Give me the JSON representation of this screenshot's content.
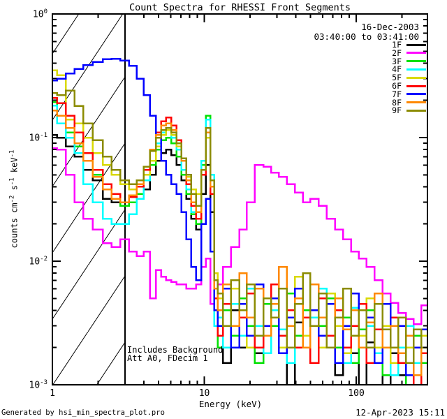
{
  "title": "Count Spectra for RHESSI Front Segments",
  "header": {
    "date": "16-Dec-2003",
    "time_range": "03:40:00 to 03:41:00"
  },
  "annotation": {
    "line1": "Includes Background",
    "line2": "Att A0, FDecim 1"
  },
  "footer": {
    "generated_by": "Generated by hsi_min_spectra_plot.pro",
    "datetime": "12-Apr-2023 15:11"
  },
  "legend": {
    "entries": [
      {
        "label": "1F",
        "color": "#000000"
      },
      {
        "label": "2F",
        "color": "#ff00ff"
      },
      {
        "label": "3F",
        "color": "#00e000"
      },
      {
        "label": "4F",
        "color": "#00ffff"
      },
      {
        "label": "5F",
        "color": "#d9d900"
      },
      {
        "label": "6F",
        "color": "#ff0000"
      },
      {
        "label": "7F",
        "color": "#0000ff"
      },
      {
        "label": "8F",
        "color": "#ff8800"
      },
      {
        "label": "9F",
        "color": "#8b8b00"
      }
    ]
  },
  "chart_data": {
    "type": "line",
    "title": "Count Spectra for RHESSI Front Segments",
    "xlabel": "Energy (keV)",
    "ylabel_parts": [
      {
        "t": "counts cm"
      },
      {
        "t": "-2",
        "sup": true
      },
      {
        "t": " s"
      },
      {
        "t": "-1",
        "sup": true
      },
      {
        "t": " keV"
      },
      {
        "t": "-1",
        "sup": true
      }
    ],
    "xscale": "log",
    "yscale": "log",
    "xlim": [
      1,
      294
    ],
    "ylim": [
      0.001,
      1
    ],
    "grid": false,
    "legend_position": "top-right-inside",
    "x_major": [
      1,
      10,
      100
    ],
    "x_tick_labels": [
      "1",
      "10",
      "100"
    ],
    "x_minor": [
      2,
      3,
      4,
      5,
      6,
      7,
      8,
      9,
      20,
      30,
      40,
      50,
      60,
      70,
      80,
      90,
      200
    ],
    "y_major": [
      1,
      0.1,
      0.01,
      0.001
    ],
    "y_tick_labels": [
      {
        "base": "10",
        "exp": "0"
      },
      {
        "base": "10",
        "exp": "-1"
      },
      {
        "base": "10",
        "exp": "-2"
      },
      {
        "base": "10",
        "exp": "-3"
      }
    ],
    "y_minor": [
      0.9,
      0.8,
      0.7,
      0.6,
      0.5,
      0.4,
      0.3,
      0.2,
      0.09,
      0.08,
      0.07,
      0.06,
      0.05,
      0.04,
      0.03,
      0.02,
      0.009,
      0.008,
      0.007,
      0.006,
      0.005,
      0.004,
      0.003,
      0.002
    ],
    "hatch_region": {
      "xmin": 1,
      "xmax": 3
    },
    "energies": [
      1.0,
      1.15,
      1.3,
      1.5,
      1.7,
      2.0,
      2.3,
      2.6,
      3.0,
      3.4,
      3.8,
      4.2,
      4.6,
      5.0,
      5.4,
      5.8,
      6.3,
      6.8,
      7.3,
      7.9,
      8.5,
      9.2,
      9.9,
      10.6,
      11.3,
      12.0,
      12.5,
      14,
      16,
      18,
      20,
      23,
      26,
      29,
      33,
      37,
      42,
      47,
      53,
      60,
      68,
      77,
      87,
      98,
      110,
      124,
      140,
      158,
      178,
      200,
      225,
      253,
      285
    ],
    "series": [
      {
        "name": "1F",
        "color": "#000000",
        "values": [
          0.105,
          0.1,
          0.085,
          0.07,
          0.055,
          0.045,
          0.032,
          0.03,
          0.028,
          0.03,
          0.032,
          0.038,
          0.05,
          0.065,
          0.075,
          0.08,
          0.072,
          0.06,
          0.045,
          0.032,
          0.022,
          0.018,
          0.035,
          0.06,
          0.025,
          0.006,
          0.003,
          0.0015,
          0.004,
          0.002,
          0.0035,
          0.0018,
          0.003,
          0.0045,
          0.002,
          0.001,
          0.0032,
          0.0025,
          0.0015,
          0.003,
          0.002,
          0.0012,
          0.0028,
          0.0018,
          0.001,
          0.0022,
          0.0015,
          0.001,
          0.0018,
          0.0012,
          0.001,
          0.0015,
          0.001
        ]
      },
      {
        "name": "2F",
        "color": "#ff00ff",
        "values": [
          0.082,
          0.08,
          0.05,
          0.03,
          0.022,
          0.018,
          0.014,
          0.013,
          0.015,
          0.012,
          0.011,
          0.012,
          0.005,
          0.0085,
          0.0075,
          0.007,
          0.0068,
          0.0065,
          0.0065,
          0.006,
          0.006,
          0.0065,
          0.009,
          0.0105,
          0.0045,
          0.005,
          0.0065,
          0.009,
          0.013,
          0.018,
          0.03,
          0.06,
          0.058,
          0.052,
          0.048,
          0.042,
          0.036,
          0.03,
          0.032,
          0.028,
          0.022,
          0.018,
          0.015,
          0.012,
          0.0105,
          0.009,
          0.007,
          0.0055,
          0.0046,
          0.0038,
          0.0034,
          0.0031,
          0.0044
        ]
      },
      {
        "name": "3F",
        "color": "#00e000",
        "values": [
          0.194,
          0.15,
          0.11,
          0.085,
          0.065,
          0.05,
          0.038,
          0.032,
          0.028,
          0.03,
          0.035,
          0.045,
          0.06,
          0.08,
          0.095,
          0.1,
          0.09,
          0.07,
          0.05,
          0.035,
          0.024,
          0.02,
          0.06,
          0.15,
          0.045,
          0.004,
          0.002,
          0.004,
          0.0025,
          0.005,
          0.003,
          0.0015,
          0.0045,
          0.003,
          0.002,
          0.0055,
          0.0025,
          0.004,
          0.0015,
          0.003,
          0.005,
          0.002,
          0.0035,
          0.0015,
          0.0028,
          0.004,
          0.002,
          0.0012,
          0.003,
          0.0018,
          0.001,
          0.0025,
          0.0015
        ]
      },
      {
        "name": "4F",
        "color": "#00ffff",
        "values": [
          0.182,
          0.13,
          0.1,
          0.075,
          0.042,
          0.03,
          0.022,
          0.02,
          0.02,
          0.024,
          0.032,
          0.045,
          0.065,
          0.09,
          0.11,
          0.115,
          0.1,
          0.08,
          0.055,
          0.038,
          0.025,
          0.022,
          0.065,
          0.14,
          0.05,
          0.003,
          0.0035,
          0.002,
          0.0045,
          0.0025,
          0.006,
          0.003,
          0.0018,
          0.004,
          0.0028,
          0.0015,
          0.005,
          0.002,
          0.0035,
          0.006,
          0.002,
          0.003,
          0.0015,
          0.0042,
          0.002,
          0.003,
          0.0018,
          0.0045,
          0.0012,
          0.002,
          0.003,
          0.0015,
          0.002
        ]
      },
      {
        "name": "5F",
        "color": "#d9d900",
        "values": [
          0.35,
          0.32,
          0.14,
          0.13,
          0.1,
          0.075,
          0.06,
          0.05,
          0.042,
          0.038,
          0.04,
          0.05,
          0.065,
          0.085,
          0.105,
          0.115,
          0.105,
          0.085,
          0.065,
          0.048,
          0.038,
          0.035,
          0.055,
          0.1,
          0.04,
          0.008,
          0.005,
          0.003,
          0.006,
          0.0035,
          0.002,
          0.0065,
          0.003,
          0.005,
          0.002,
          0.004,
          0.0075,
          0.0025,
          0.004,
          0.002,
          0.0055,
          0.003,
          0.0018,
          0.004,
          0.0025,
          0.005,
          0.002,
          0.003,
          0.0015,
          0.0035,
          0.002,
          0.001,
          0.0025
        ]
      },
      {
        "name": "6F",
        "color": "#ff0000",
        "values": [
          0.21,
          0.19,
          0.15,
          0.11,
          0.075,
          0.055,
          0.042,
          0.035,
          0.03,
          0.033,
          0.04,
          0.055,
          0.08,
          0.11,
          0.135,
          0.145,
          0.125,
          0.095,
          0.065,
          0.042,
          0.028,
          0.022,
          0.05,
          0.12,
          0.035,
          0.005,
          0.0025,
          0.0045,
          0.002,
          0.0035,
          0.0055,
          0.002,
          0.003,
          0.0065,
          0.0025,
          0.004,
          0.002,
          0.0035,
          0.0015,
          0.005,
          0.0025,
          0.004,
          0.002,
          0.003,
          0.0045,
          0.0015,
          0.0028,
          0.002,
          0.0035,
          0.0015,
          0.0025,
          0.001,
          0.0018
        ]
      },
      {
        "name": "7F",
        "color": "#0000ff",
        "values": [
          0.29,
          0.3,
          0.33,
          0.36,
          0.385,
          0.41,
          0.43,
          0.435,
          0.42,
          0.38,
          0.3,
          0.22,
          0.15,
          0.1,
          0.065,
          0.05,
          0.042,
          0.035,
          0.025,
          0.015,
          0.009,
          0.007,
          0.02,
          0.032,
          0.012,
          0.004,
          0.003,
          0.006,
          0.002,
          0.0045,
          0.0025,
          0.0065,
          0.003,
          0.005,
          0.0018,
          0.0035,
          0.006,
          0.002,
          0.004,
          0.0025,
          0.0045,
          0.0015,
          0.003,
          0.0055,
          0.002,
          0.0035,
          0.0015,
          0.0045,
          0.002,
          0.003,
          0.0012,
          0.002,
          0.0028
        ]
      },
      {
        "name": "8F",
        "color": "#ff8800",
        "values": [
          0.166,
          0.15,
          0.12,
          0.09,
          0.065,
          0.048,
          0.038,
          0.032,
          0.03,
          0.034,
          0.042,
          0.058,
          0.08,
          0.105,
          0.125,
          0.13,
          0.115,
          0.09,
          0.065,
          0.045,
          0.03,
          0.025,
          0.055,
          0.11,
          0.04,
          0.006,
          0.004,
          0.0065,
          0.003,
          0.008,
          0.0035,
          0.006,
          0.0025,
          0.0045,
          0.009,
          0.003,
          0.005,
          0.002,
          0.0065,
          0.0035,
          0.002,
          0.005,
          0.0028,
          0.004,
          0.002,
          0.0032,
          0.0055,
          0.002,
          0.003,
          0.0018,
          0.0025,
          0.0012,
          0.002
        ]
      },
      {
        "name": "9F",
        "color": "#8b8b00",
        "values": [
          0.23,
          0.22,
          0.24,
          0.18,
          0.13,
          0.095,
          0.07,
          0.055,
          0.045,
          0.042,
          0.045,
          0.058,
          0.078,
          0.1,
          0.115,
          0.12,
          0.11,
          0.09,
          0.068,
          0.05,
          0.035,
          0.028,
          0.055,
          0.12,
          0.045,
          0.007,
          0.0055,
          0.003,
          0.007,
          0.004,
          0.0065,
          0.0025,
          0.005,
          0.0035,
          0.006,
          0.002,
          0.0045,
          0.008,
          0.003,
          0.0055,
          0.002,
          0.0035,
          0.006,
          0.0025,
          0.004,
          0.002,
          0.0045,
          0.0028,
          0.002,
          0.0035,
          0.0015,
          0.0028,
          0.002
        ]
      }
    ]
  }
}
